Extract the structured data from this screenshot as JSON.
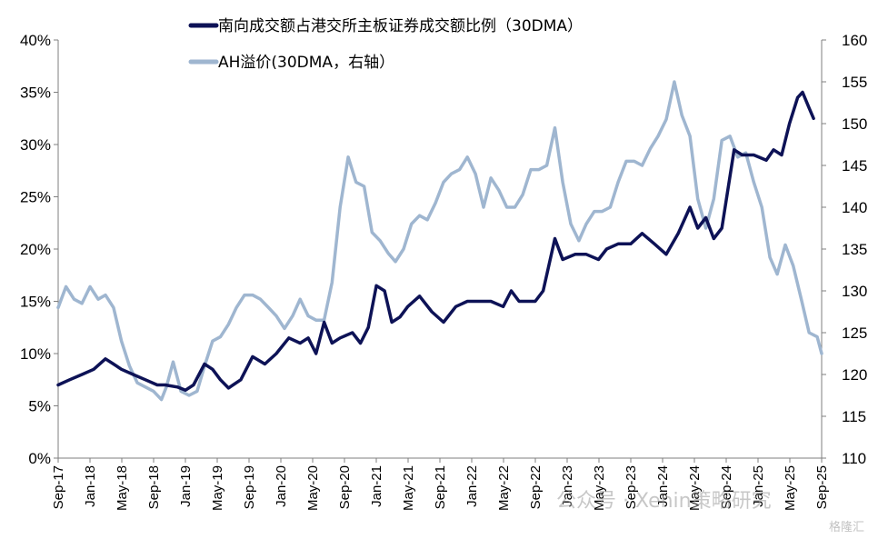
{
  "chart_data": {
    "type": "line",
    "legend_placement": "top",
    "grid": false,
    "x_ticks": [
      "Sep-17",
      "Jan-18",
      "May-18",
      "Sep-18",
      "Jan-19",
      "May-19",
      "Sep-19",
      "Jan-20",
      "May-20",
      "Sep-20",
      "Jan-21",
      "May-21",
      "Sep-21",
      "Jan-22",
      "May-22",
      "Sep-22",
      "Jan-23",
      "May-23",
      "Sep-23",
      "Jan-24",
      "May-24",
      "Sep-24",
      "Jan-25",
      "May-25",
      "Sep-25"
    ],
    "left_axis": {
      "ylim": [
        0,
        40
      ],
      "ticks": [
        "0%",
        "5%",
        "10%",
        "15%",
        "20%",
        "25%",
        "30%",
        "35%",
        "40%"
      ]
    },
    "right_axis": {
      "ylim": [
        110,
        160
      ],
      "ticks": [
        "110",
        "115",
        "120",
        "125",
        "130",
        "135",
        "140",
        "145",
        "150",
        "155",
        "160"
      ]
    },
    "series": [
      {
        "name": "南向成交额占港交所主板证券成交额比例（30DMA）",
        "axis": "left",
        "color": "#0d1256",
        "points": [
          [
            "2017-09-01",
            7.0
          ],
          [
            "2017-10-15",
            7.5
          ],
          [
            "2017-12-01",
            8.0
          ],
          [
            "2018-01-15",
            8.5
          ],
          [
            "2018-03-01",
            9.5
          ],
          [
            "2018-04-01",
            9.0
          ],
          [
            "2018-05-01",
            8.5
          ],
          [
            "2018-06-15",
            8.0
          ],
          [
            "2018-08-01",
            7.5
          ],
          [
            "2018-09-15",
            7.0
          ],
          [
            "2018-10-15",
            7.0
          ],
          [
            "2018-12-01",
            6.8
          ],
          [
            "2019-01-01",
            6.5
          ],
          [
            "2019-02-01",
            7.0
          ],
          [
            "2019-03-15",
            9.0
          ],
          [
            "2019-04-15",
            8.5
          ],
          [
            "2019-05-15",
            7.5
          ],
          [
            "2019-06-15",
            6.7
          ],
          [
            "2019-08-01",
            7.5
          ],
          [
            "2019-09-15",
            9.7
          ],
          [
            "2019-11-01",
            9.0
          ],
          [
            "2019-12-15",
            10.0
          ],
          [
            "2020-02-01",
            11.5
          ],
          [
            "2020-03-15",
            11.0
          ],
          [
            "2020-04-15",
            11.5
          ],
          [
            "2020-05-15",
            10.0
          ],
          [
            "2020-06-15",
            13.0
          ],
          [
            "2020-07-15",
            11.0
          ],
          [
            "2020-08-15",
            11.5
          ],
          [
            "2020-10-01",
            12.0
          ],
          [
            "2020-11-01",
            11.0
          ],
          [
            "2020-12-01",
            12.5
          ],
          [
            "2021-01-01",
            16.5
          ],
          [
            "2021-02-01",
            16.0
          ],
          [
            "2021-03-01",
            13.0
          ],
          [
            "2021-04-01",
            13.5
          ],
          [
            "2021-05-01",
            14.5
          ],
          [
            "2021-06-15",
            15.5
          ],
          [
            "2021-08-01",
            14.0
          ],
          [
            "2021-09-15",
            13.0
          ],
          [
            "2021-11-01",
            14.5
          ],
          [
            "2021-12-15",
            15.0
          ],
          [
            "2022-02-01",
            15.0
          ],
          [
            "2022-03-15",
            15.0
          ],
          [
            "2022-05-01",
            14.5
          ],
          [
            "2022-06-01",
            16.0
          ],
          [
            "2022-07-01",
            15.0
          ],
          [
            "2022-09-01",
            15.0
          ],
          [
            "2022-10-01",
            16.0
          ],
          [
            "2022-11-15",
            21.0
          ],
          [
            "2022-12-15",
            19.0
          ],
          [
            "2023-02-01",
            19.5
          ],
          [
            "2023-03-15",
            19.5
          ],
          [
            "2023-05-01",
            19.0
          ],
          [
            "2023-06-01",
            20.0
          ],
          [
            "2023-07-15",
            20.5
          ],
          [
            "2023-09-01",
            20.5
          ],
          [
            "2023-10-15",
            21.5
          ],
          [
            "2023-12-01",
            20.5
          ],
          [
            "2024-01-15",
            19.5
          ],
          [
            "2024-03-01",
            21.5
          ],
          [
            "2024-04-15",
            24.0
          ],
          [
            "2024-05-15",
            22.0
          ],
          [
            "2024-06-15",
            23.0
          ],
          [
            "2024-07-15",
            21.0
          ],
          [
            "2024-08-15",
            22.0
          ],
          [
            "2024-10-01",
            29.5
          ],
          [
            "2024-11-01",
            29.0
          ],
          [
            "2024-12-15",
            29.0
          ],
          [
            "2025-02-01",
            28.5
          ],
          [
            "2025-03-01",
            29.5
          ],
          [
            "2025-04-01",
            29.0
          ],
          [
            "2025-05-01",
            32.0
          ],
          [
            "2025-06-01",
            34.5
          ],
          [
            "2025-06-20",
            35.0
          ],
          [
            "2025-07-15",
            33.5
          ],
          [
            "2025-08-01",
            32.5
          ]
        ]
      },
      {
        "name": "AH溢价(30DMA，右轴）",
        "axis": "right",
        "color": "#9fb6d0",
        "points": [
          [
            "2017-09-01",
            128
          ],
          [
            "2017-10-01",
            130.5
          ],
          [
            "2017-11-01",
            129
          ],
          [
            "2017-12-01",
            128.5
          ],
          [
            "2018-01-01",
            130.5
          ],
          [
            "2018-02-01",
            129
          ],
          [
            "2018-03-01",
            129.5
          ],
          [
            "2018-04-01",
            128
          ],
          [
            "2018-05-01",
            124
          ],
          [
            "2018-06-01",
            121
          ],
          [
            "2018-07-01",
            119
          ],
          [
            "2018-08-01",
            118.5
          ],
          [
            "2018-09-01",
            118
          ],
          [
            "2018-10-01",
            117
          ],
          [
            "2018-10-20",
            118.5
          ],
          [
            "2018-11-15",
            121.5
          ],
          [
            "2018-12-15",
            118
          ],
          [
            "2019-01-15",
            117.5
          ],
          [
            "2019-02-15",
            118
          ],
          [
            "2019-03-15",
            121
          ],
          [
            "2019-04-15",
            124
          ],
          [
            "2019-05-15",
            124.5
          ],
          [
            "2019-06-15",
            126
          ],
          [
            "2019-07-15",
            128
          ],
          [
            "2019-08-15",
            129.5
          ],
          [
            "2019-09-15",
            129.5
          ],
          [
            "2019-10-15",
            129
          ],
          [
            "2019-11-15",
            128
          ],
          [
            "2019-12-15",
            127
          ],
          [
            "2020-01-15",
            125.5
          ],
          [
            "2020-02-15",
            127
          ],
          [
            "2020-03-15",
            129
          ],
          [
            "2020-04-15",
            127
          ],
          [
            "2020-05-15",
            126.5
          ],
          [
            "2020-06-15",
            126.5
          ],
          [
            "2020-07-15",
            131
          ],
          [
            "2020-08-15",
            140
          ],
          [
            "2020-09-15",
            146
          ],
          [
            "2020-10-15",
            143
          ],
          [
            "2020-11-15",
            142.5
          ],
          [
            "2020-12-15",
            137
          ],
          [
            "2021-01-15",
            136
          ],
          [
            "2021-02-15",
            134.5
          ],
          [
            "2021-03-15",
            133.5
          ],
          [
            "2021-04-15",
            135
          ],
          [
            "2021-05-15",
            138
          ],
          [
            "2021-06-15",
            139
          ],
          [
            "2021-07-15",
            138.5
          ],
          [
            "2021-08-15",
            140.5
          ],
          [
            "2021-09-15",
            143
          ],
          [
            "2021-10-15",
            144
          ],
          [
            "2021-11-15",
            144.5
          ],
          [
            "2021-12-15",
            146
          ],
          [
            "2022-01-15",
            144
          ],
          [
            "2022-02-15",
            140
          ],
          [
            "2022-03-15",
            143.5
          ],
          [
            "2022-04-15",
            142
          ],
          [
            "2022-05-15",
            140
          ],
          [
            "2022-06-15",
            140
          ],
          [
            "2022-07-15",
            141.5
          ],
          [
            "2022-08-15",
            144.5
          ],
          [
            "2022-09-15",
            144.5
          ],
          [
            "2022-10-15",
            145
          ],
          [
            "2022-11-15",
            149.5
          ],
          [
            "2022-12-15",
            143
          ],
          [
            "2023-01-15",
            138
          ],
          [
            "2023-02-15",
            136
          ],
          [
            "2023-03-15",
            138
          ],
          [
            "2023-04-15",
            139.5
          ],
          [
            "2023-05-15",
            139.5
          ],
          [
            "2023-06-15",
            140
          ],
          [
            "2023-07-15",
            143
          ],
          [
            "2023-08-15",
            145.5
          ],
          [
            "2023-09-15",
            145.5
          ],
          [
            "2023-10-15",
            145
          ],
          [
            "2023-11-15",
            147
          ],
          [
            "2023-12-15",
            148.5
          ],
          [
            "2024-01-15",
            150.5
          ],
          [
            "2024-02-15",
            155
          ],
          [
            "2024-03-15",
            151
          ],
          [
            "2024-04-15",
            148.5
          ],
          [
            "2024-05-15",
            141
          ],
          [
            "2024-06-15",
            137.5
          ],
          [
            "2024-07-15",
            141
          ],
          [
            "2024-08-15",
            148
          ],
          [
            "2024-09-15",
            148.5
          ],
          [
            "2024-10-15",
            146
          ],
          [
            "2024-11-15",
            146.5
          ],
          [
            "2024-12-15",
            143
          ],
          [
            "2025-01-15",
            140
          ],
          [
            "2025-02-15",
            134
          ],
          [
            "2025-03-15",
            132
          ],
          [
            "2025-04-15",
            135.5
          ],
          [
            "2025-05-15",
            133
          ],
          [
            "2025-06-15",
            129
          ],
          [
            "2025-07-15",
            125
          ],
          [
            "2025-08-15",
            124.5
          ],
          [
            "2025-09-01",
            122.5
          ]
        ]
      }
    ]
  },
  "watermark": {
    "text": "公众号 · Xenin策略研究",
    "corner_text": "格隆汇"
  }
}
